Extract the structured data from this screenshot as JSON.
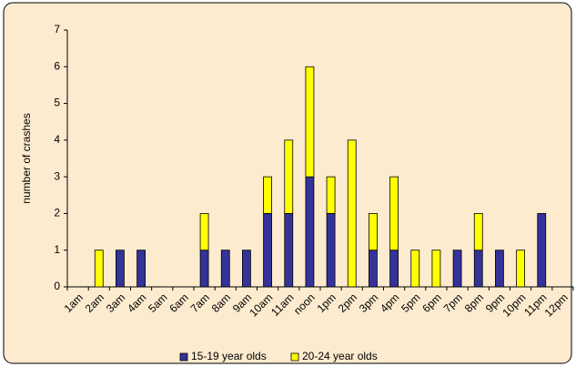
{
  "chart_data": {
    "type": "stacked_bar",
    "categories": [
      "1am",
      "2am",
      "3am",
      "4am",
      "5am",
      "6am",
      "7am",
      "8am",
      "9am",
      "10am",
      "11am",
      "noon",
      "1pm",
      "2pm",
      "3pm",
      "4pm",
      "5pm",
      "6pm",
      "7pm",
      "8pm",
      "9pm",
      "10pm",
      "11pm",
      "12pm"
    ],
    "series": [
      {
        "name": "15-19 year olds",
        "color": "#333399",
        "values": [
          0,
          0,
          1,
          1,
          0,
          0,
          1,
          1,
          1,
          2,
          2,
          3,
          2,
          0,
          1,
          1,
          0,
          0,
          1,
          1,
          1,
          0,
          2,
          0
        ]
      },
      {
        "name": "20-24 year olds",
        "color": "#ffff00",
        "values": [
          0,
          1,
          0,
          0,
          0,
          0,
          1,
          0,
          0,
          1,
          2,
          3,
          1,
          4,
          1,
          2,
          1,
          1,
          0,
          1,
          0,
          1,
          0,
          0
        ]
      }
    ],
    "y_label": "number of crashes",
    "ylim": [
      0,
      7
    ],
    "yticks": [
      0,
      1,
      2,
      3,
      4,
      5,
      6,
      7
    ],
    "legend": "bottom"
  }
}
